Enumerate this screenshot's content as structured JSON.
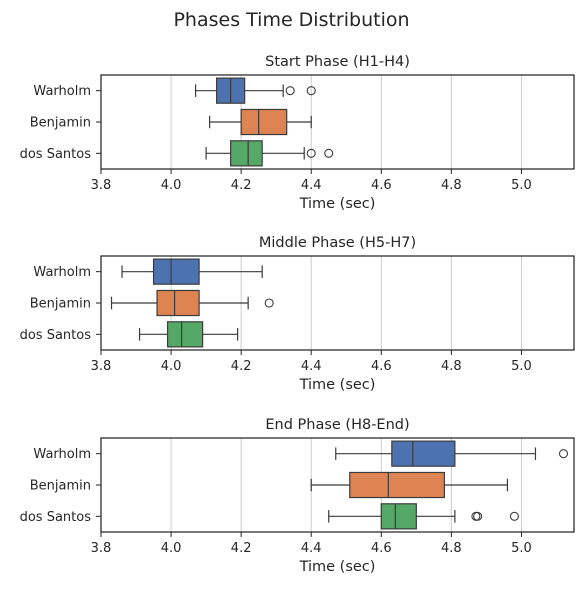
{
  "figure": {
    "title": "Phases Time Distribution"
  },
  "chart_data": [
    {
      "type": "boxplot",
      "orientation": "horizontal",
      "title": "Start Phase (H1-H4)",
      "xlabel": "Time (sec)",
      "ylabel": "",
      "xlim": [
        3.8,
        5.15
      ],
      "xticks": [
        "3.8",
        "4.0",
        "4.2",
        "4.4",
        "4.6",
        "4.8",
        "5.0"
      ],
      "grid": "x",
      "categories": [
        "Warholm",
        "Benjamin",
        "dos Santos"
      ],
      "colors": [
        "#4c72b0",
        "#dd8452",
        "#55a868"
      ],
      "boxes": [
        {
          "whislo": 4.07,
          "q1": 4.13,
          "med": 4.17,
          "q3": 4.21,
          "whishi": 4.32,
          "fliers": [
            4.34,
            4.4
          ]
        },
        {
          "whislo": 4.11,
          "q1": 4.2,
          "med": 4.25,
          "q3": 4.33,
          "whishi": 4.4,
          "fliers": []
        },
        {
          "whislo": 4.1,
          "q1": 4.17,
          "med": 4.22,
          "q3": 4.26,
          "whishi": 4.38,
          "fliers": [
            4.4,
            4.45
          ]
        }
      ]
    },
    {
      "type": "boxplot",
      "orientation": "horizontal",
      "title": "Middle Phase (H5-H7)",
      "xlabel": "Time (sec)",
      "ylabel": "",
      "xlim": [
        3.8,
        5.15
      ],
      "xticks": [
        "3.8",
        "4.0",
        "4.2",
        "4.4",
        "4.6",
        "4.8",
        "5.0"
      ],
      "grid": "x",
      "categories": [
        "Warholm",
        "Benjamin",
        "dos Santos"
      ],
      "colors": [
        "#4c72b0",
        "#dd8452",
        "#55a868"
      ],
      "boxes": [
        {
          "whislo": 3.86,
          "q1": 3.95,
          "med": 4.0,
          "q3": 4.08,
          "whishi": 4.26,
          "fliers": []
        },
        {
          "whislo": 3.83,
          "q1": 3.96,
          "med": 4.01,
          "q3": 4.08,
          "whishi": 4.22,
          "fliers": [
            4.28
          ]
        },
        {
          "whislo": 3.91,
          "q1": 3.99,
          "med": 4.03,
          "q3": 4.09,
          "whishi": 4.19,
          "fliers": []
        }
      ]
    },
    {
      "type": "boxplot",
      "orientation": "horizontal",
      "title": "End Phase (H8-End)",
      "xlabel": "Time (sec)",
      "ylabel": "",
      "xlim": [
        3.8,
        5.15
      ],
      "xticks": [
        "3.8",
        "4.0",
        "4.2",
        "4.4",
        "4.6",
        "4.8",
        "5.0"
      ],
      "grid": "x",
      "categories": [
        "Warholm",
        "Benjamin",
        "dos Santos"
      ],
      "colors": [
        "#4c72b0",
        "#dd8452",
        "#55a868"
      ],
      "boxes": [
        {
          "whislo": 4.47,
          "q1": 4.63,
          "med": 4.69,
          "q3": 4.81,
          "whishi": 5.04,
          "fliers": [
            5.12
          ]
        },
        {
          "whislo": 4.4,
          "q1": 4.51,
          "med": 4.62,
          "q3": 4.78,
          "whishi": 4.96,
          "fliers": []
        },
        {
          "whislo": 4.45,
          "q1": 4.6,
          "med": 4.64,
          "q3": 4.7,
          "whishi": 4.81,
          "fliers": [
            4.87,
            4.875,
            4.98
          ]
        }
      ]
    }
  ]
}
